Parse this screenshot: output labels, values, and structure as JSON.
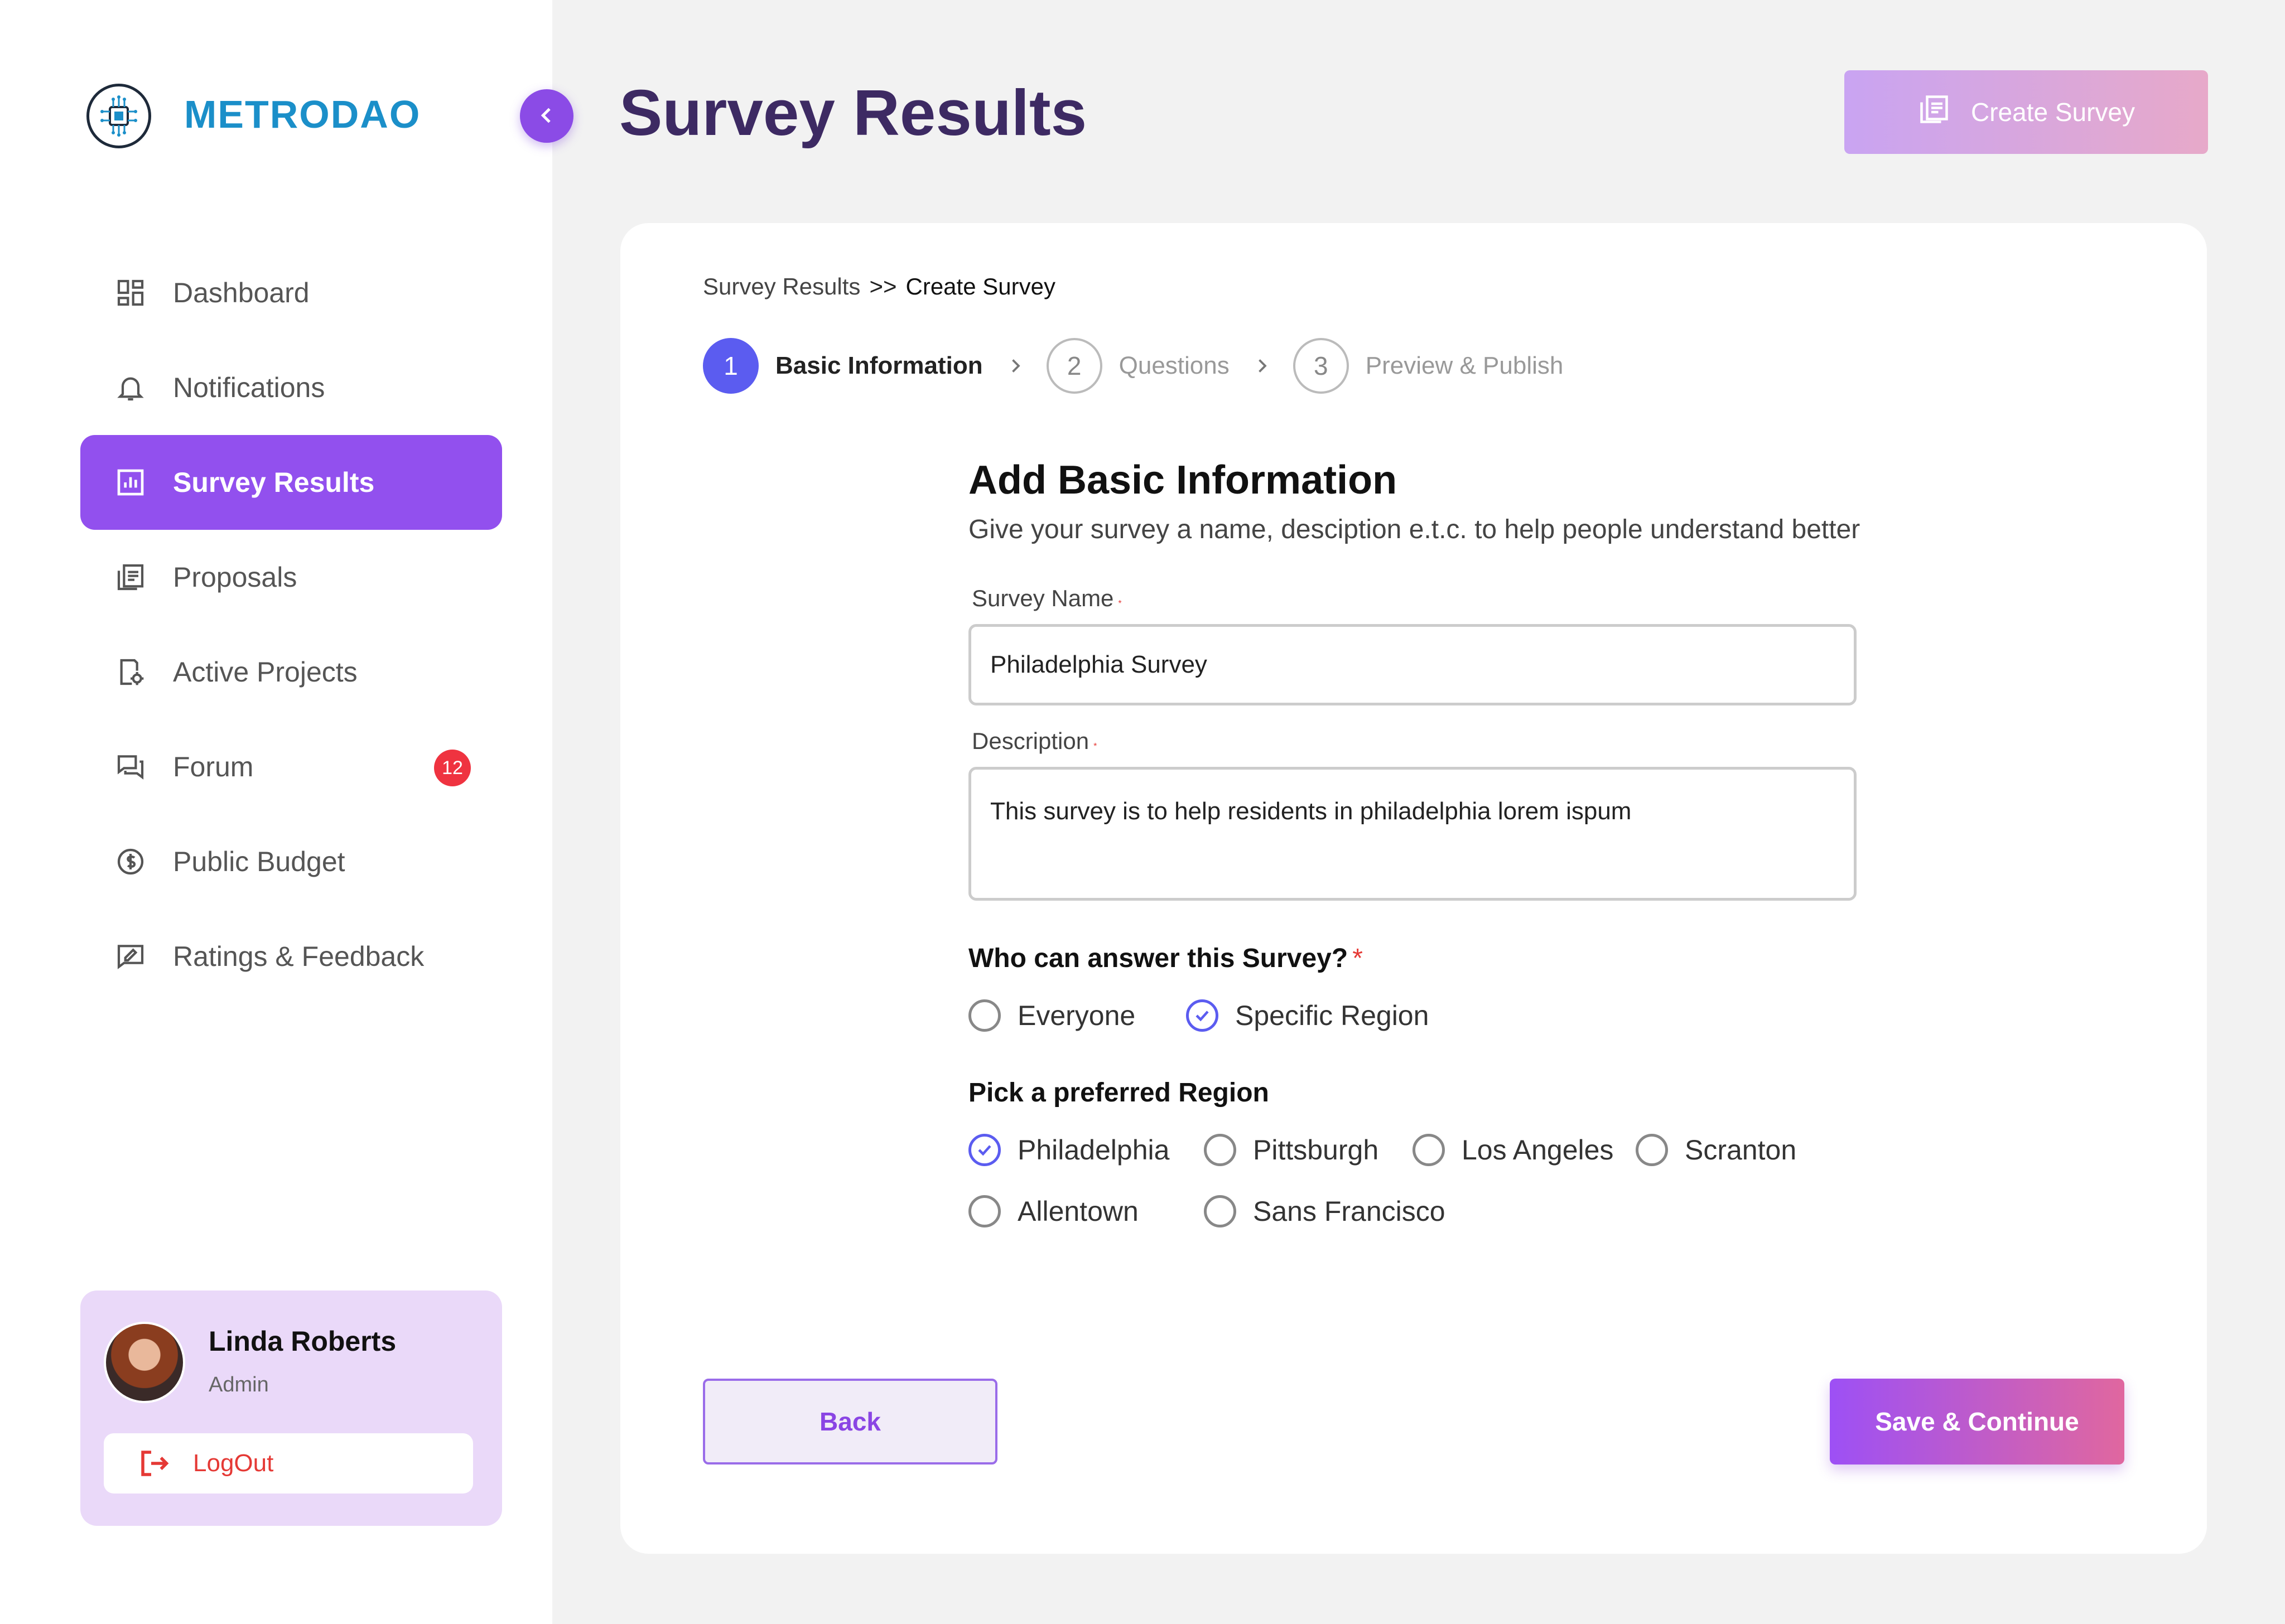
{
  "brand": {
    "name": "METRODAO"
  },
  "header": {
    "title": "Survey Results",
    "create_button": "Create Survey"
  },
  "sidebar": {
    "items": [
      {
        "label": "Dashboard",
        "icon": "dashboard-icon"
      },
      {
        "label": "Notifications",
        "icon": "bell-icon"
      },
      {
        "label": "Survey Results",
        "icon": "bar-chart-icon",
        "active": true
      },
      {
        "label": "Proposals",
        "icon": "documents-icon"
      },
      {
        "label": "Active Projects",
        "icon": "project-settings-icon"
      },
      {
        "label": "Forum",
        "icon": "chat-icon",
        "badge": "12"
      },
      {
        "label": "Public Budget",
        "icon": "dollar-icon"
      },
      {
        "label": "Ratings & Feedback",
        "icon": "feedback-icon"
      }
    ],
    "user": {
      "name": "Linda Roberts",
      "role": "Admin",
      "logout": "LogOut"
    }
  },
  "breadcrumb": {
    "parent": "Survey Results",
    "separator": ">>",
    "current": "Create Survey"
  },
  "stepper": [
    {
      "num": "1",
      "label": "Basic Information",
      "active": true
    },
    {
      "num": "2",
      "label": "Questions"
    },
    {
      "num": "3",
      "label": "Preview & Publish"
    }
  ],
  "form": {
    "title": "Add Basic Information",
    "subtitle": "Give your survey a name, desciption e.t.c. to help people understand better",
    "survey_name": {
      "label": "Survey Name",
      "required": "*",
      "value": "Philadelphia Survey"
    },
    "description": {
      "label": "Description",
      "required": "*",
      "value": "This survey is to help residents in philadelphia lorem ispum"
    },
    "audience": {
      "question": "Who can answer this Survey?",
      "required": "*",
      "options": [
        {
          "label": "Everyone",
          "checked": false
        },
        {
          "label": "Specific Region",
          "checked": true
        }
      ]
    },
    "region": {
      "question": "Pick a preferred Region",
      "options": [
        {
          "label": "Philadelphia",
          "checked": true
        },
        {
          "label": "Pittsburgh",
          "checked": false
        },
        {
          "label": "Los Angeles",
          "checked": false
        },
        {
          "label": "Scranton",
          "checked": false
        },
        {
          "label": "Allentown",
          "checked": false
        },
        {
          "label": "Sans Francisco",
          "checked": false
        }
      ]
    }
  },
  "actions": {
    "back": "Back",
    "save": "Save & Continue"
  },
  "colors": {
    "accent": "#9250ee",
    "step_active": "#5b5cf0",
    "title": "#3d2a63",
    "brand": "#1b8fc9",
    "danger": "#e53935"
  }
}
